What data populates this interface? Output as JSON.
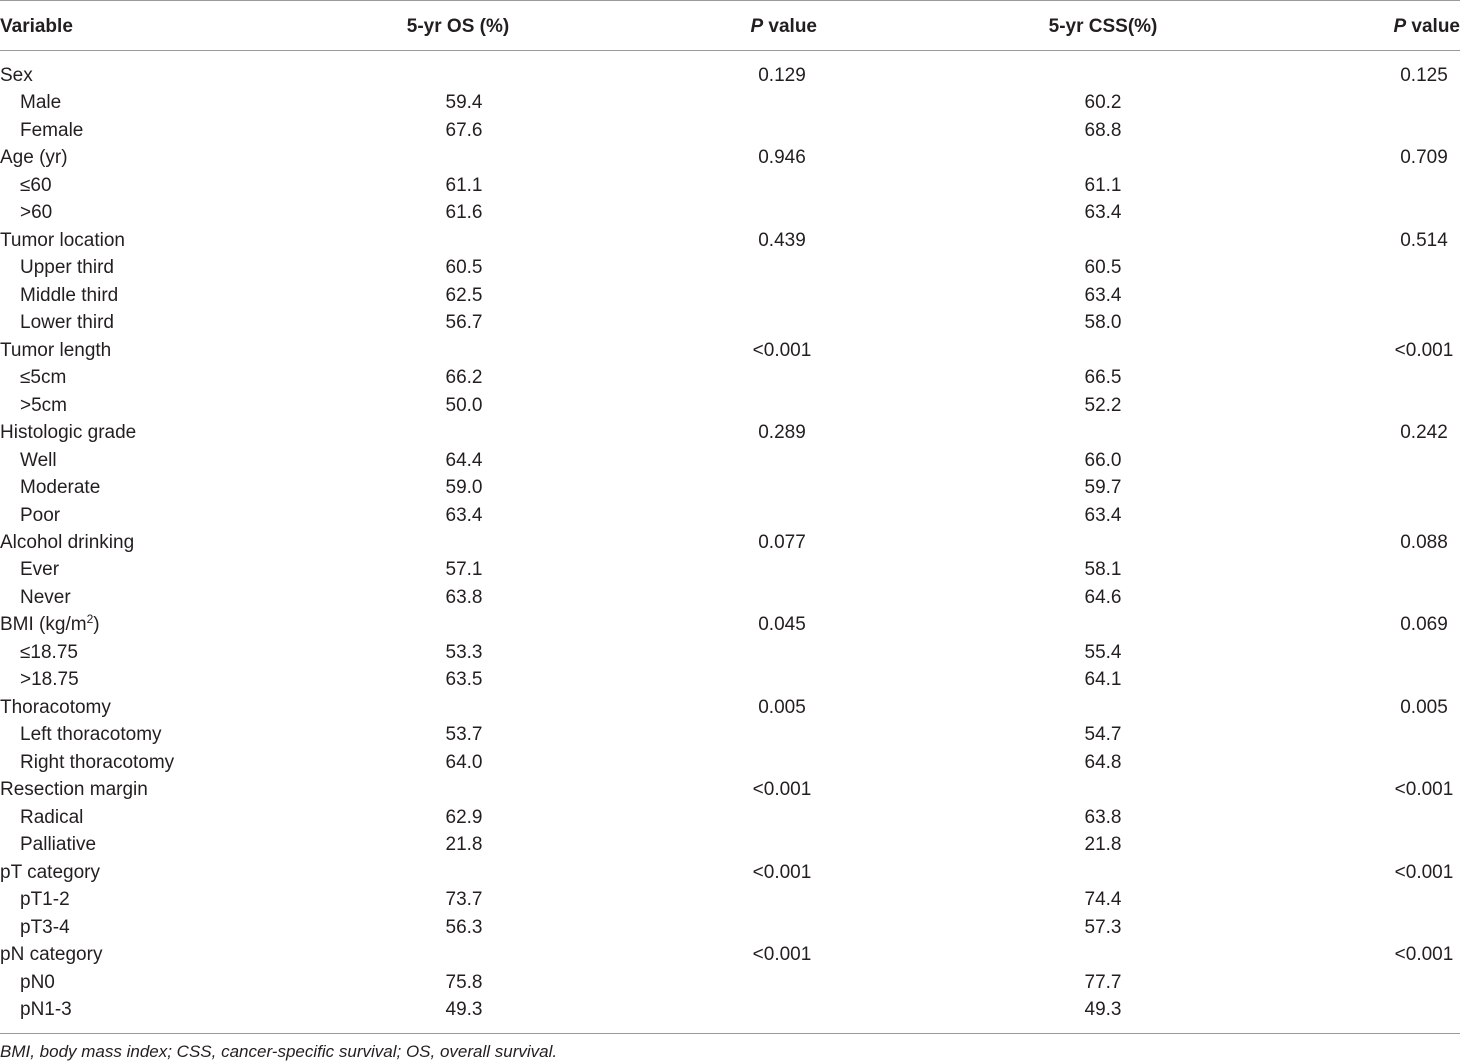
{
  "table": {
    "header": [
      "Variable",
      "5-yr OS (%)",
      {
        "italic": "P",
        "text": "value"
      },
      "5-yr CSS(%)",
      {
        "italic": "P",
        "text": "value"
      }
    ],
    "groups": [
      {
        "label": "Sex",
        "os_p": "0.129",
        "css_p": "0.125",
        "levels": [
          {
            "label": "Male",
            "os": "59.4",
            "css": "60.2"
          },
          {
            "label": "Female",
            "os": "67.6",
            "css": "68.8"
          }
        ]
      },
      {
        "label": "Age (yr)",
        "os_p": "0.946",
        "css_p": "0.709",
        "levels": [
          {
            "label": "≤60",
            "os": "61.1",
            "css": "61.1"
          },
          {
            "label": ">60",
            "os": "61.6",
            "css": "63.4"
          }
        ]
      },
      {
        "label": "Tumor location",
        "os_p": "0.439",
        "css_p": "0.514",
        "levels": [
          {
            "label": "Upper third",
            "os": "60.5",
            "css": "60.5"
          },
          {
            "label": "Middle third",
            "os": "62.5",
            "css": "63.4"
          },
          {
            "label": "Lower third",
            "os": "56.7",
            "css": "58.0"
          }
        ]
      },
      {
        "label": "Tumor length",
        "os_p": "<0.001",
        "css_p": "<0.001",
        "levels": [
          {
            "label": "≤5cm",
            "os": "66.2",
            "css": "66.5"
          },
          {
            "label": ">5cm",
            "os": "50.0",
            "css": "52.2"
          }
        ]
      },
      {
        "label": "Histologic grade",
        "os_p": "0.289",
        "css_p": "0.242",
        "levels": [
          {
            "label": "Well",
            "os": "64.4",
            "css": "66.0"
          },
          {
            "label": "Moderate",
            "os": "59.0",
            "css": "59.7"
          },
          {
            "label": "Poor",
            "os": "63.4",
            "css": "63.4"
          }
        ]
      },
      {
        "label": "Alcohol drinking",
        "os_p": "0.077",
        "css_p": "0.088",
        "levels": [
          {
            "label": "Ever",
            "os": "57.1",
            "css": "58.1"
          },
          {
            "label": "Never",
            "os": "63.8",
            "css": "64.6"
          }
        ]
      },
      {
        "label": {
          "text": "BMI (kg/m",
          "sup": "2",
          "after": ")"
        },
        "os_p": "0.045",
        "css_p": "0.069",
        "levels": [
          {
            "label": "≤18.75",
            "os": "53.3",
            "css": "55.4"
          },
          {
            "label": ">18.75",
            "os": "63.5",
            "css": "64.1"
          }
        ]
      },
      {
        "label": "Thoracotomy",
        "os_p": "0.005",
        "css_p": "0.005",
        "levels": [
          {
            "label": "Left thoracotomy",
            "os": "53.7",
            "css": "54.7"
          },
          {
            "label": "Right thoracotomy",
            "os": "64.0",
            "css": "64.8"
          }
        ]
      },
      {
        "label": "Resection margin",
        "os_p": "<0.001",
        "css_p": "<0.001",
        "levels": [
          {
            "label": "Radical",
            "os": "62.9",
            "css": "63.8"
          },
          {
            "label": "Palliative",
            "os": "21.8",
            "css": "21.8"
          }
        ]
      },
      {
        "label": "pT category",
        "os_p": "<0.001",
        "css_p": "<0.001",
        "levels": [
          {
            "label": "pT1-2",
            "os": "73.7",
            "css": "74.4"
          },
          {
            "label": "pT3-4",
            "os": "56.3",
            "css": "57.3"
          }
        ]
      },
      {
        "label": "pN category",
        "os_p": "<0.001",
        "css_p": "<0.001",
        "levels": [
          {
            "label": "pN0",
            "os": "75.8",
            "css": "77.7"
          },
          {
            "label": "pN1-3",
            "os": "49.3",
            "css": "49.3"
          }
        ]
      }
    ],
    "footnote": "BMI, body mass index; CSS, cancer-specific survival; OS, overall survival."
  }
}
